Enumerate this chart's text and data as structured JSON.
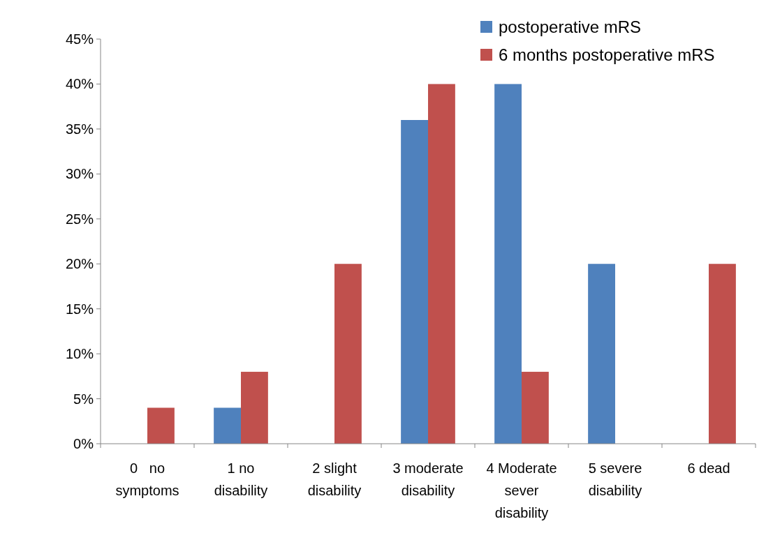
{
  "chart_data": {
    "type": "bar",
    "categories": [
      "0   no symptoms",
      "1 no disability",
      "2 slight disability",
      "3 moderate disability",
      "4 Moderate sever disability",
      "5 severe disability",
      "6 dead"
    ],
    "series": [
      {
        "name": "postoperative mRS",
        "color": "#4f81bd",
        "values": [
          0,
          4,
          0,
          36,
          40,
          20,
          0
        ]
      },
      {
        "name": "6 months postoperative mRS",
        "color": "#c0504d",
        "values": [
          4,
          8,
          20,
          40,
          8,
          0,
          20
        ]
      }
    ],
    "ylim": [
      0,
      45
    ],
    "yticks": [
      {
        "value": 0,
        "label": "0%"
      },
      {
        "value": 5,
        "label": "5%"
      },
      {
        "value": 10,
        "label": "10%"
      },
      {
        "value": 15,
        "label": "15%"
      },
      {
        "value": 20,
        "label": "20%"
      },
      {
        "value": 25,
        "label": "25%"
      },
      {
        "value": 30,
        "label": "30%"
      },
      {
        "value": 35,
        "label": "35%"
      },
      {
        "value": 40,
        "label": "40%"
      },
      {
        "value": 45,
        "label": "45%"
      }
    ],
    "grid": false,
    "legend": "top right"
  }
}
